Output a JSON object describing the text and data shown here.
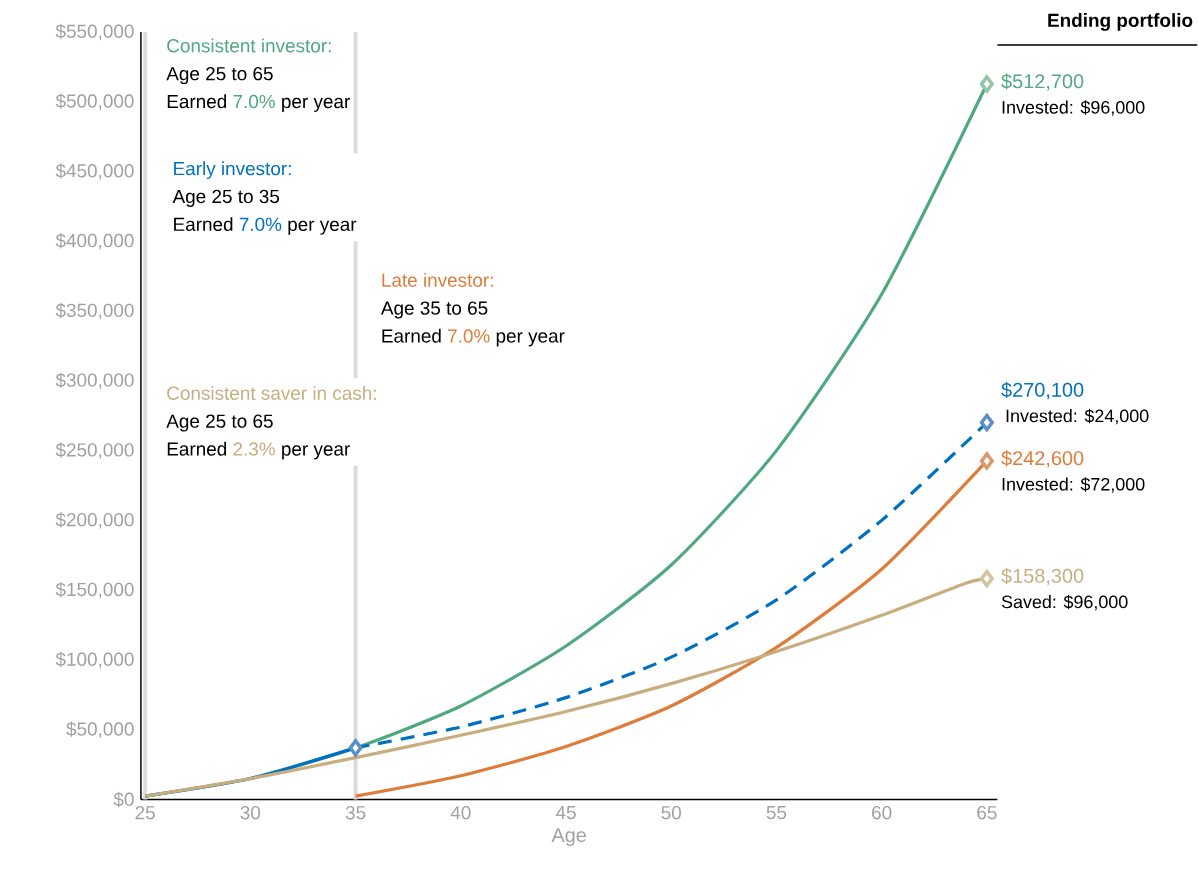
{
  "chart_data": {
    "type": "line",
    "xlabel": "Age",
    "xlim": [
      24.8,
      65.5
    ],
    "xticks": [
      25,
      30,
      35,
      40,
      45,
      50,
      55,
      60,
      65
    ],
    "ylim": [
      0,
      550000
    ],
    "yticks": [
      {
        "value": 0,
        "label": "$0"
      },
      {
        "value": 50000,
        "label": "$50,000"
      },
      {
        "value": 100000,
        "label": "$100,000"
      },
      {
        "value": 150000,
        "label": "$150,000"
      },
      {
        "value": 200000,
        "label": "$200,000"
      },
      {
        "value": 250000,
        "label": "$250,000"
      },
      {
        "value": 300000,
        "label": "$300,000"
      },
      {
        "value": 350000,
        "label": "$350,000"
      },
      {
        "value": 400000,
        "label": "$400,000"
      },
      {
        "value": 450000,
        "label": "$450,000"
      },
      {
        "value": 500000,
        "label": "$500,000"
      },
      {
        "value": 550000,
        "label": "$550,000"
      }
    ],
    "series": [
      {
        "color": "#4fa97f",
        "x": [
          25,
          30,
          35,
          40,
          45,
          50,
          55,
          60,
          65
        ],
        "values": [
          2400,
          15000,
          37000,
          67000,
          110000,
          168000,
          250000,
          362000,
          512700
        ],
        "value_labels": [
          null,
          null,
          null,
          null,
          null,
          null,
          null,
          null,
          "$512,700"
        ]
      },
      {
        "color": "#0070c0",
        "x": [
          25,
          30,
          35
        ],
        "values": [
          2400,
          15000,
          37000
        ]
      },
      {
        "color": "#0070c0",
        "line_style": "dashed",
        "x": [
          35,
          40,
          45,
          50,
          55,
          60,
          65
        ],
        "values": [
          37000,
          52000,
          73000,
          102000,
          143000,
          200000,
          270100
        ],
        "value_labels": [
          null,
          null,
          null,
          null,
          null,
          null,
          "$270,100"
        ]
      },
      {
        "color": "#e07b39",
        "x": [
          35,
          40,
          45,
          50,
          55,
          60,
          65
        ],
        "values": [
          2400,
          17000,
          38000,
          67000,
          109000,
          165000,
          242600
        ],
        "value_labels": [
          null,
          null,
          null,
          null,
          null,
          null,
          "$242,600"
        ]
      },
      {
        "color": "#c8ad7f",
        "x": [
          25,
          30,
          35,
          40,
          45,
          50,
          55,
          60,
          64,
          65
        ],
        "values": [
          2400,
          15000,
          30000,
          46000,
          63000,
          83000,
          106000,
          132000,
          155000,
          158300
        ],
        "value_labels": [
          null,
          null,
          null,
          null,
          null,
          null,
          null,
          null,
          null,
          "$158,300"
        ]
      },
      {
        "type": "scatter",
        "marker": "diamond",
        "x": [
          35,
          65,
          65,
          65,
          65
        ],
        "values": [
          37000,
          512700,
          270100,
          242600,
          158300
        ],
        "colors": [
          "#5b8fc7",
          "#94c4a9",
          "#5b8fc7",
          "#d9996a",
          "#d4c3a3"
        ]
      }
    ],
    "ref_lines": [
      {
        "axis": "x",
        "value": 25,
        "color": "#dcdcdc"
      },
      {
        "axis": "x",
        "value": 35,
        "color": "#dcdcdc"
      }
    ],
    "annotations": [
      "Consistent investor:",
      "Age 25 to 65",
      "Earned",
      "7.0%",
      "per year",
      "Early investor:",
      "Age 25 to 35",
      "Earned",
      "7.0%",
      "per year",
      "Late investor:",
      "Age 35 to 65",
      "Earned",
      "7.0%",
      "per year",
      "Consistent saver in cash:",
      "Age 25 to 65",
      "Earned",
      "2.3%",
      "per year",
      "Ending portfolio",
      "Invested: $96,000",
      "Invested: $24,000",
      "Invested: $72,000",
      "Saved: $96,000"
    ]
  }
}
